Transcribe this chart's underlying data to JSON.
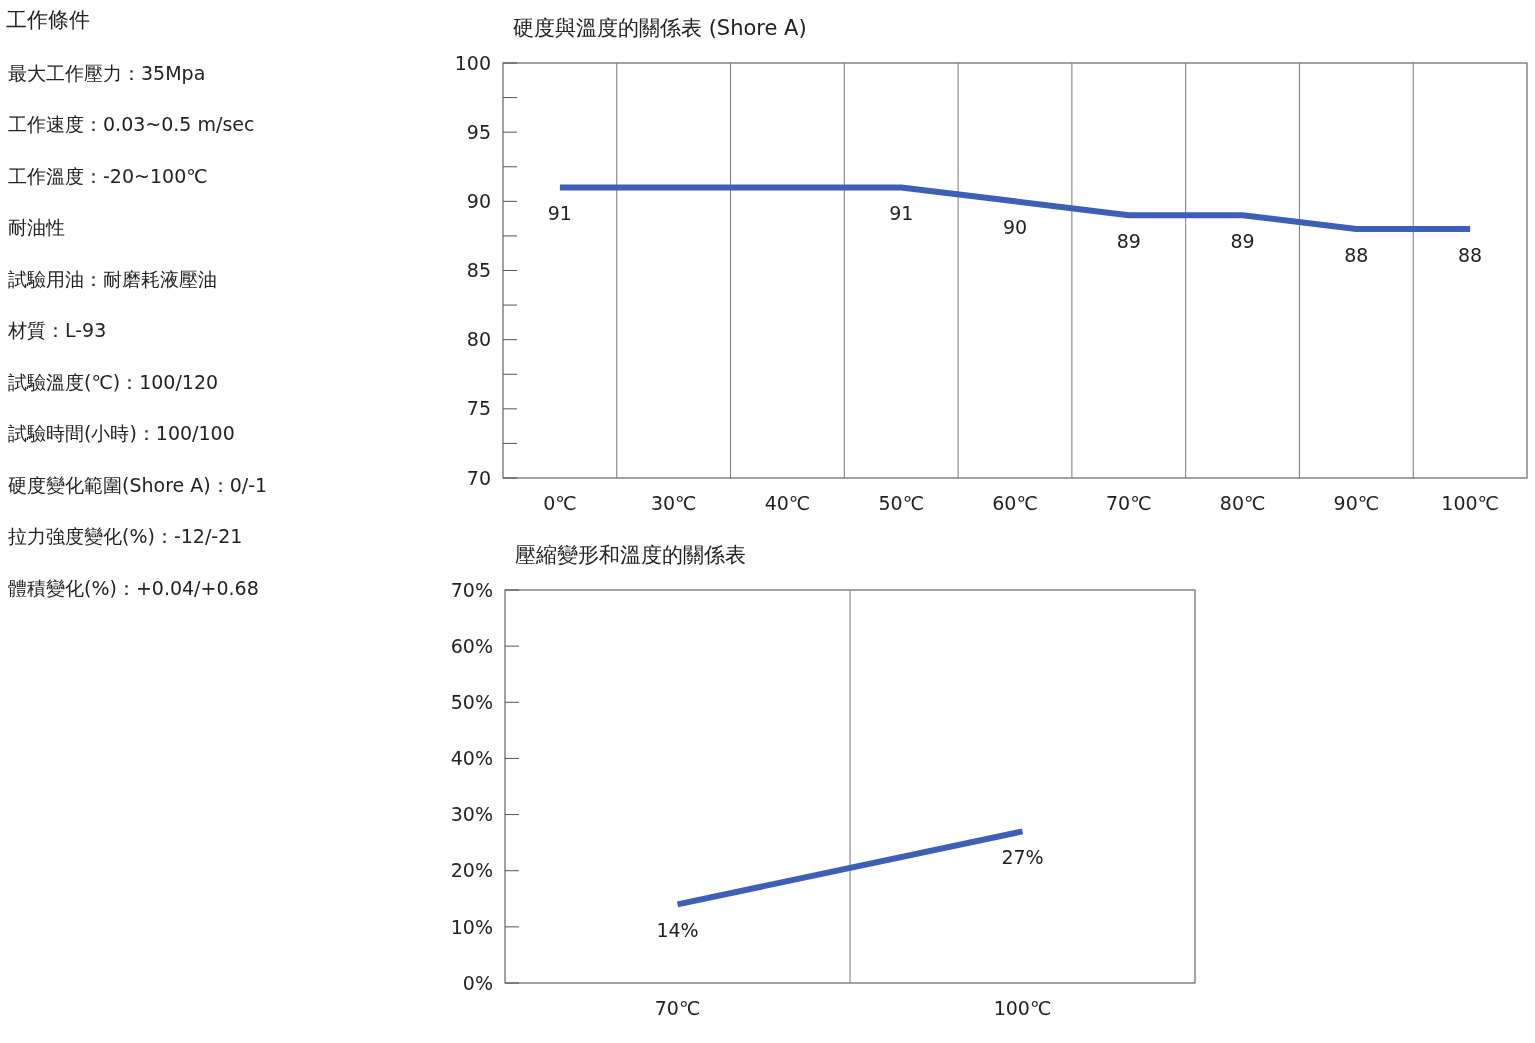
{
  "chart_data": [
    {
      "type": "other",
      "title": "工作條件",
      "annotations": [
        "最大工作壓力：35Mpa",
        "工作速度：0.03~0.5 m/sec",
        "工作溫度：-20~100℃",
        "耐油性",
        "試驗用油：耐磨耗液壓油",
        "材質：L-93",
        "試驗溫度(℃)：100/120",
        "試驗時間(小時)：100/100",
        "硬度變化範圍(Shore A)：0/-1",
        "拉力強度變化(%)：-12/-21",
        "體積變化(%)：+0.04/+0.68"
      ]
    },
    {
      "type": "line",
      "title": "硬度與溫度的關係表 (Shore A)",
      "categories": [
        "0℃",
        "30℃",
        "40℃",
        "50℃",
        "60℃",
        "70℃",
        "80℃",
        "90℃",
        "100℃"
      ],
      "values": [
        91,
        91,
        91,
        91,
        90,
        89,
        89,
        88,
        88
      ],
      "value_labels": [
        "91",
        null,
        null,
        "91",
        "90",
        "89",
        "89",
        "88",
        "88"
      ],
      "color": "#3d5fb5",
      "ylim": [
        70,
        100
      ],
      "yticks": [
        70,
        {
          "value": 72.5,
          "label": null
        },
        75,
        {
          "value": 77.5,
          "label": null
        },
        80,
        {
          "value": 82.5,
          "label": null
        },
        85,
        {
          "value": 87.5,
          "label": null
        },
        90,
        {
          "value": 92.5,
          "label": null
        },
        95,
        {
          "value": 97.5,
          "label": null
        },
        100
      ],
      "grid": "x"
    },
    {
      "type": "line",
      "title": "壓縮變形和溫度的關係表",
      "categories": [
        "70℃",
        "100℃"
      ],
      "values": [
        14,
        27
      ],
      "value_labels": [
        "14%",
        "27%"
      ],
      "color": "#3d5fb5",
      "ylim": [
        0,
        70
      ],
      "yticks": [
        {
          "value": 0,
          "label": "0%"
        },
        {
          "value": 10,
          "label": "10%"
        },
        {
          "value": 20,
          "label": "20%"
        },
        {
          "value": 30,
          "label": "30%"
        },
        {
          "value": 40,
          "label": "40%"
        },
        {
          "value": 50,
          "label": "50%"
        },
        {
          "value": 60,
          "label": "60%"
        },
        {
          "value": 70,
          "label": "70%"
        }
      ],
      "grid": "x"
    }
  ]
}
